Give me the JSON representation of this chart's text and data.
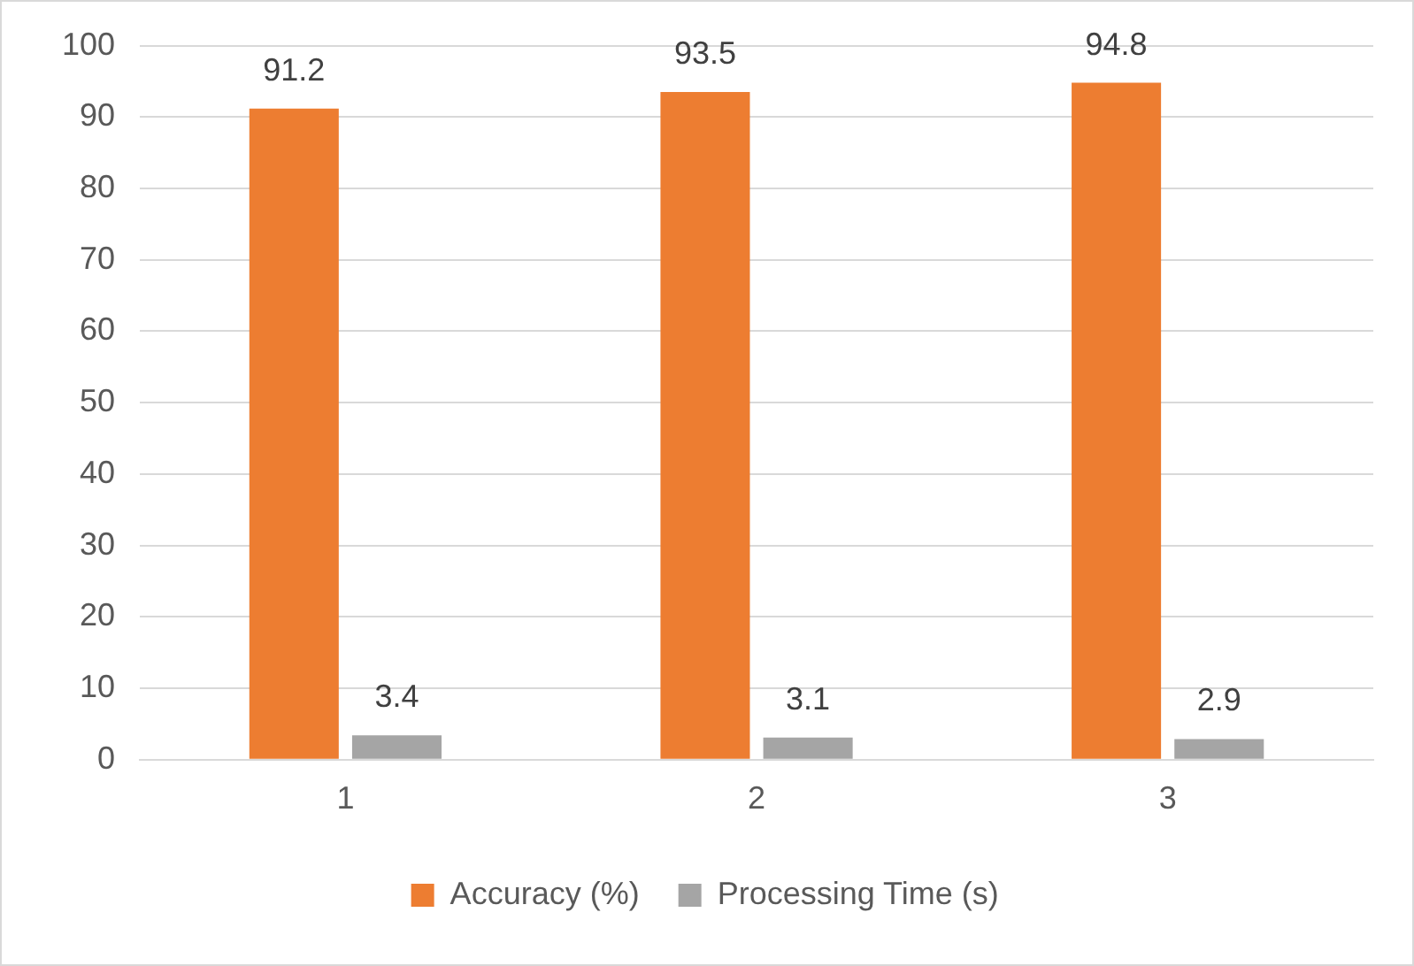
{
  "chart_data": {
    "type": "bar",
    "categories": [
      "1",
      "2",
      "3"
    ],
    "series": [
      {
        "name": "Accuracy (%)",
        "color": "#ed7d31",
        "values": [
          91.2,
          93.5,
          94.8
        ]
      },
      {
        "name": "Processing Time (s)",
        "color": "#a5a5a5",
        "values": [
          3.4,
          3.1,
          2.9
        ]
      }
    ],
    "ylim": [
      0,
      100
    ],
    "yticks": [
      0,
      10,
      20,
      30,
      40,
      50,
      60,
      70,
      80,
      90,
      100
    ],
    "grid": "y",
    "legend": "bottom",
    "data_labels": true
  }
}
